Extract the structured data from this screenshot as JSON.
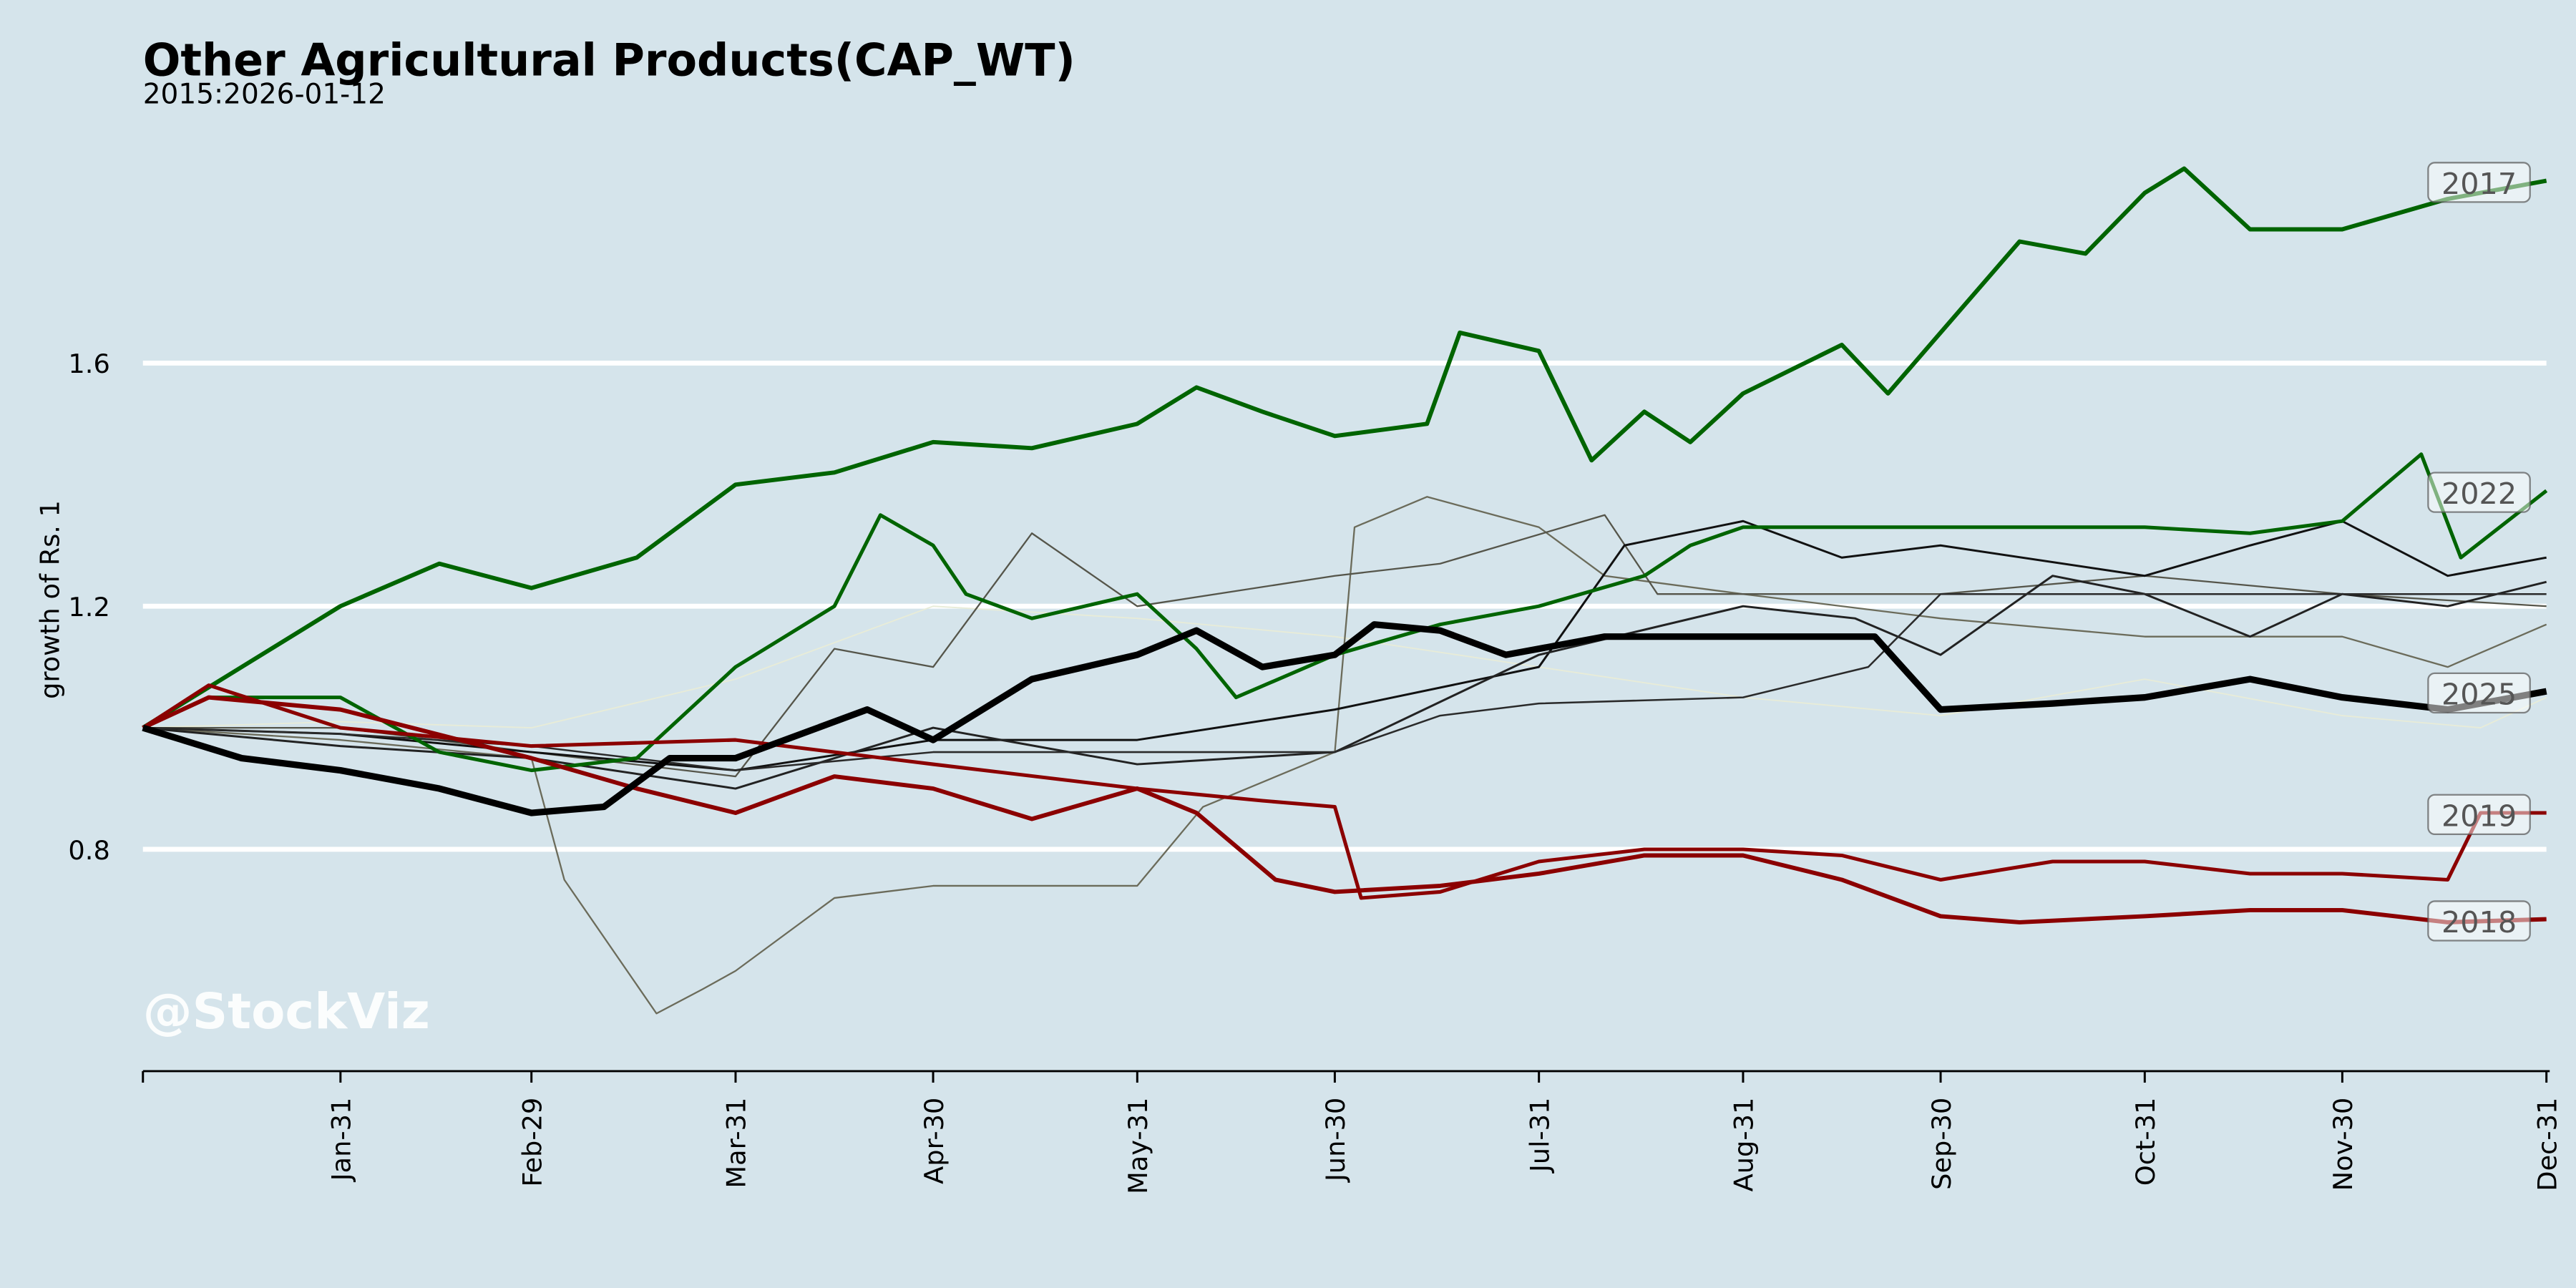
{
  "chart_data": {
    "type": "line",
    "title": "Other Agricultural Products(CAP_WT)",
    "subtitle": "2015:2026-01-12",
    "xlabel": "",
    "ylabel": "growth of Rs. 1",
    "watermark": "@StockViz",
    "x_unit": "day of year",
    "xlim": [
      0,
      365
    ],
    "ylim": [
      0.435,
      2.0
    ],
    "yticks": [
      0.8,
      1.2,
      1.6
    ],
    "ytick_labels": [
      "0.8",
      "1.2",
      "1.6"
    ],
    "xticks": [
      30,
      59,
      90,
      120,
      151,
      181,
      212,
      243,
      273,
      304,
      334,
      365
    ],
    "xtick_labels": [
      "Jan-31",
      "Feb-29",
      "Mar-31",
      "Apr-30",
      "May-31",
      "Jun-30",
      "Jul-31",
      "Aug-31",
      "Sep-30",
      "Oct-31",
      "Nov-30",
      "Dec-31"
    ],
    "grid": "horizontal",
    "series": [
      {
        "name": "faint",
        "label": null,
        "color": "#e8ecd8",
        "width": 0.8,
        "points": [
          [
            0,
            1.0
          ],
          [
            30,
            1.01
          ],
          [
            59,
            1.0
          ],
          [
            90,
            1.08
          ],
          [
            120,
            1.2
          ],
          [
            151,
            1.18
          ],
          [
            181,
            1.15
          ],
          [
            212,
            1.1
          ],
          [
            243,
            1.05
          ],
          [
            273,
            1.02
          ],
          [
            304,
            1.08
          ],
          [
            334,
            1.02
          ],
          [
            355,
            1.0
          ],
          [
            365,
            1.05
          ]
        ]
      },
      {
        "name": "gray-a",
        "label": null,
        "color": "#6b6b5a",
        "width": 1,
        "points": [
          [
            0,
            1.0
          ],
          [
            30,
            0.98
          ],
          [
            59,
            0.95
          ],
          [
            64,
            0.75
          ],
          [
            78,
            0.53
          ],
          [
            85,
            0.57
          ],
          [
            90,
            0.6
          ],
          [
            105,
            0.72
          ],
          [
            120,
            0.74
          ],
          [
            151,
            0.74
          ],
          [
            161,
            0.87
          ],
          [
            181,
            0.96
          ],
          [
            184,
            1.33
          ],
          [
            195,
            1.38
          ],
          [
            212,
            1.33
          ],
          [
            222,
            1.25
          ],
          [
            243,
            1.22
          ],
          [
            273,
            1.18
          ],
          [
            304,
            1.15
          ],
          [
            334,
            1.15
          ],
          [
            350,
            1.1
          ],
          [
            365,
            1.17
          ]
        ]
      },
      {
        "name": "gray-b",
        "label": null,
        "color": "#55554a",
        "width": 1,
        "points": [
          [
            0,
            1.0
          ],
          [
            30,
            1.0
          ],
          [
            59,
            0.96
          ],
          [
            90,
            0.92
          ],
          [
            105,
            1.13
          ],
          [
            120,
            1.1
          ],
          [
            135,
            1.32
          ],
          [
            151,
            1.2
          ],
          [
            181,
            1.25
          ],
          [
            197,
            1.27
          ],
          [
            222,
            1.35
          ],
          [
            230,
            1.22
          ],
          [
            243,
            1.22
          ],
          [
            273,
            1.22
          ],
          [
            304,
            1.25
          ],
          [
            334,
            1.22
          ],
          [
            365,
            1.2
          ]
        ]
      },
      {
        "name": "black-a",
        "label": null,
        "color": "#111111",
        "width": 1.3,
        "points": [
          [
            0,
            1.0
          ],
          [
            30,
            0.99
          ],
          [
            59,
            0.96
          ],
          [
            90,
            0.93
          ],
          [
            120,
            0.98
          ],
          [
            151,
            0.98
          ],
          [
            181,
            1.03
          ],
          [
            212,
            1.1
          ],
          [
            225,
            1.3
          ],
          [
            243,
            1.34
          ],
          [
            258,
            1.28
          ],
          [
            273,
            1.3
          ],
          [
            304,
            1.25
          ],
          [
            320,
            1.3
          ],
          [
            334,
            1.34
          ],
          [
            350,
            1.25
          ],
          [
            365,
            1.28
          ]
        ]
      },
      {
        "name": "black-b",
        "label": null,
        "color": "#222222",
        "width": 1.3,
        "points": [
          [
            0,
            1.0
          ],
          [
            30,
            0.97
          ],
          [
            59,
            0.95
          ],
          [
            90,
            0.9
          ],
          [
            120,
            1.0
          ],
          [
            151,
            0.94
          ],
          [
            181,
            0.96
          ],
          [
            212,
            1.12
          ],
          [
            243,
            1.2
          ],
          [
            260,
            1.18
          ],
          [
            273,
            1.12
          ],
          [
            290,
            1.25
          ],
          [
            304,
            1.22
          ],
          [
            320,
            1.15
          ],
          [
            334,
            1.22
          ],
          [
            350,
            1.2
          ],
          [
            365,
            1.24
          ]
        ]
      },
      {
        "name": "black-c",
        "label": null,
        "color": "#2a2a2a",
        "width": 1.1,
        "points": [
          [
            0,
            1.0
          ],
          [
            30,
            0.99
          ],
          [
            59,
            0.97
          ],
          [
            90,
            0.93
          ],
          [
            120,
            0.96
          ],
          [
            151,
            0.96
          ],
          [
            181,
            0.96
          ],
          [
            197,
            1.02
          ],
          [
            212,
            1.04
          ],
          [
            243,
            1.05
          ],
          [
            262,
            1.1
          ],
          [
            273,
            1.22
          ],
          [
            304,
            1.22
          ],
          [
            334,
            1.22
          ],
          [
            365,
            1.22
          ]
        ]
      },
      {
        "name": "2022",
        "label": "2022",
        "color": "#006400",
        "width": 2.2,
        "points": [
          [
            0,
            1.0
          ],
          [
            10,
            1.05
          ],
          [
            30,
            1.05
          ],
          [
            45,
            0.96
          ],
          [
            59,
            0.93
          ],
          [
            75,
            0.95
          ],
          [
            90,
            1.1
          ],
          [
            105,
            1.2
          ],
          [
            112,
            1.35
          ],
          [
            120,
            1.3
          ],
          [
            125,
            1.22
          ],
          [
            135,
            1.18
          ],
          [
            151,
            1.22
          ],
          [
            160,
            1.13
          ],
          [
            166,
            1.05
          ],
          [
            181,
            1.12
          ],
          [
            197,
            1.17
          ],
          [
            212,
            1.2
          ],
          [
            228,
            1.25
          ],
          [
            235,
            1.3
          ],
          [
            243,
            1.33
          ],
          [
            273,
            1.33
          ],
          [
            304,
            1.33
          ],
          [
            320,
            1.32
          ],
          [
            334,
            1.34
          ],
          [
            346,
            1.45
          ],
          [
            352,
            1.28
          ],
          [
            365,
            1.39
          ]
        ]
      },
      {
        "name": "2017",
        "label": "2017",
        "color": "#006400",
        "width": 2.6,
        "points": [
          [
            0,
            1.0
          ],
          [
            15,
            1.1
          ],
          [
            30,
            1.2
          ],
          [
            45,
            1.27
          ],
          [
            59,
            1.23
          ],
          [
            75,
            1.28
          ],
          [
            90,
            1.4
          ],
          [
            105,
            1.42
          ],
          [
            120,
            1.47
          ],
          [
            135,
            1.46
          ],
          [
            151,
            1.5
          ],
          [
            160,
            1.56
          ],
          [
            170,
            1.52
          ],
          [
            181,
            1.48
          ],
          [
            195,
            1.5
          ],
          [
            200,
            1.65
          ],
          [
            212,
            1.62
          ],
          [
            220,
            1.44
          ],
          [
            228,
            1.52
          ],
          [
            235,
            1.47
          ],
          [
            243,
            1.55
          ],
          [
            258,
            1.63
          ],
          [
            265,
            1.55
          ],
          [
            273,
            1.65
          ],
          [
            285,
            1.8
          ],
          [
            295,
            1.78
          ],
          [
            304,
            1.88
          ],
          [
            310,
            1.92
          ],
          [
            320,
            1.82
          ],
          [
            334,
            1.82
          ],
          [
            350,
            1.87
          ],
          [
            365,
            1.9
          ]
        ]
      },
      {
        "name": "2019",
        "label": "2019",
        "color": "#8b0000",
        "width": 2.2,
        "points": [
          [
            0,
            1.0
          ],
          [
            10,
            1.07
          ],
          [
            30,
            1.0
          ],
          [
            59,
            0.97
          ],
          [
            90,
            0.98
          ],
          [
            120,
            0.94
          ],
          [
            151,
            0.9
          ],
          [
            170,
            0.88
          ],
          [
            181,
            0.87
          ],
          [
            185,
            0.72
          ],
          [
            197,
            0.73
          ],
          [
            212,
            0.78
          ],
          [
            228,
            0.8
          ],
          [
            243,
            0.8
          ],
          [
            258,
            0.79
          ],
          [
            273,
            0.75
          ],
          [
            290,
            0.78
          ],
          [
            304,
            0.78
          ],
          [
            320,
            0.76
          ],
          [
            334,
            0.76
          ],
          [
            350,
            0.75
          ],
          [
            355,
            0.86
          ],
          [
            365,
            0.86
          ]
        ]
      },
      {
        "name": "2018",
        "label": "2018",
        "color": "#8b0000",
        "width": 2.6,
        "points": [
          [
            0,
            1.0
          ],
          [
            10,
            1.05
          ],
          [
            30,
            1.03
          ],
          [
            59,
            0.95
          ],
          [
            75,
            0.9
          ],
          [
            90,
            0.86
          ],
          [
            105,
            0.92
          ],
          [
            120,
            0.9
          ],
          [
            135,
            0.85
          ],
          [
            151,
            0.9
          ],
          [
            160,
            0.86
          ],
          [
            172,
            0.75
          ],
          [
            181,
            0.73
          ],
          [
            197,
            0.74
          ],
          [
            212,
            0.76
          ],
          [
            228,
            0.79
          ],
          [
            243,
            0.79
          ],
          [
            258,
            0.75
          ],
          [
            273,
            0.69
          ],
          [
            285,
            0.68
          ],
          [
            304,
            0.69
          ],
          [
            320,
            0.7
          ],
          [
            334,
            0.7
          ],
          [
            350,
            0.68
          ],
          [
            365,
            0.685
          ]
        ]
      },
      {
        "name": "2025",
        "label": "2025",
        "color": "#000000",
        "width": 4,
        "points": [
          [
            0,
            1.0
          ],
          [
            15,
            0.95
          ],
          [
            30,
            0.93
          ],
          [
            45,
            0.9
          ],
          [
            59,
            0.86
          ],
          [
            70,
            0.87
          ],
          [
            80,
            0.95
          ],
          [
            90,
            0.95
          ],
          [
            110,
            1.03
          ],
          [
            120,
            0.98
          ],
          [
            135,
            1.08
          ],
          [
            151,
            1.12
          ],
          [
            160,
            1.16
          ],
          [
            170,
            1.1
          ],
          [
            181,
            1.12
          ],
          [
            187,
            1.17
          ],
          [
            197,
            1.16
          ],
          [
            207,
            1.12
          ],
          [
            222,
            1.15
          ],
          [
            243,
            1.15
          ],
          [
            263,
            1.15
          ],
          [
            273,
            1.03
          ],
          [
            290,
            1.04
          ],
          [
            304,
            1.05
          ],
          [
            320,
            1.08
          ],
          [
            334,
            1.05
          ],
          [
            350,
            1.03
          ],
          [
            365,
            1.06
          ]
        ]
      }
    ]
  }
}
